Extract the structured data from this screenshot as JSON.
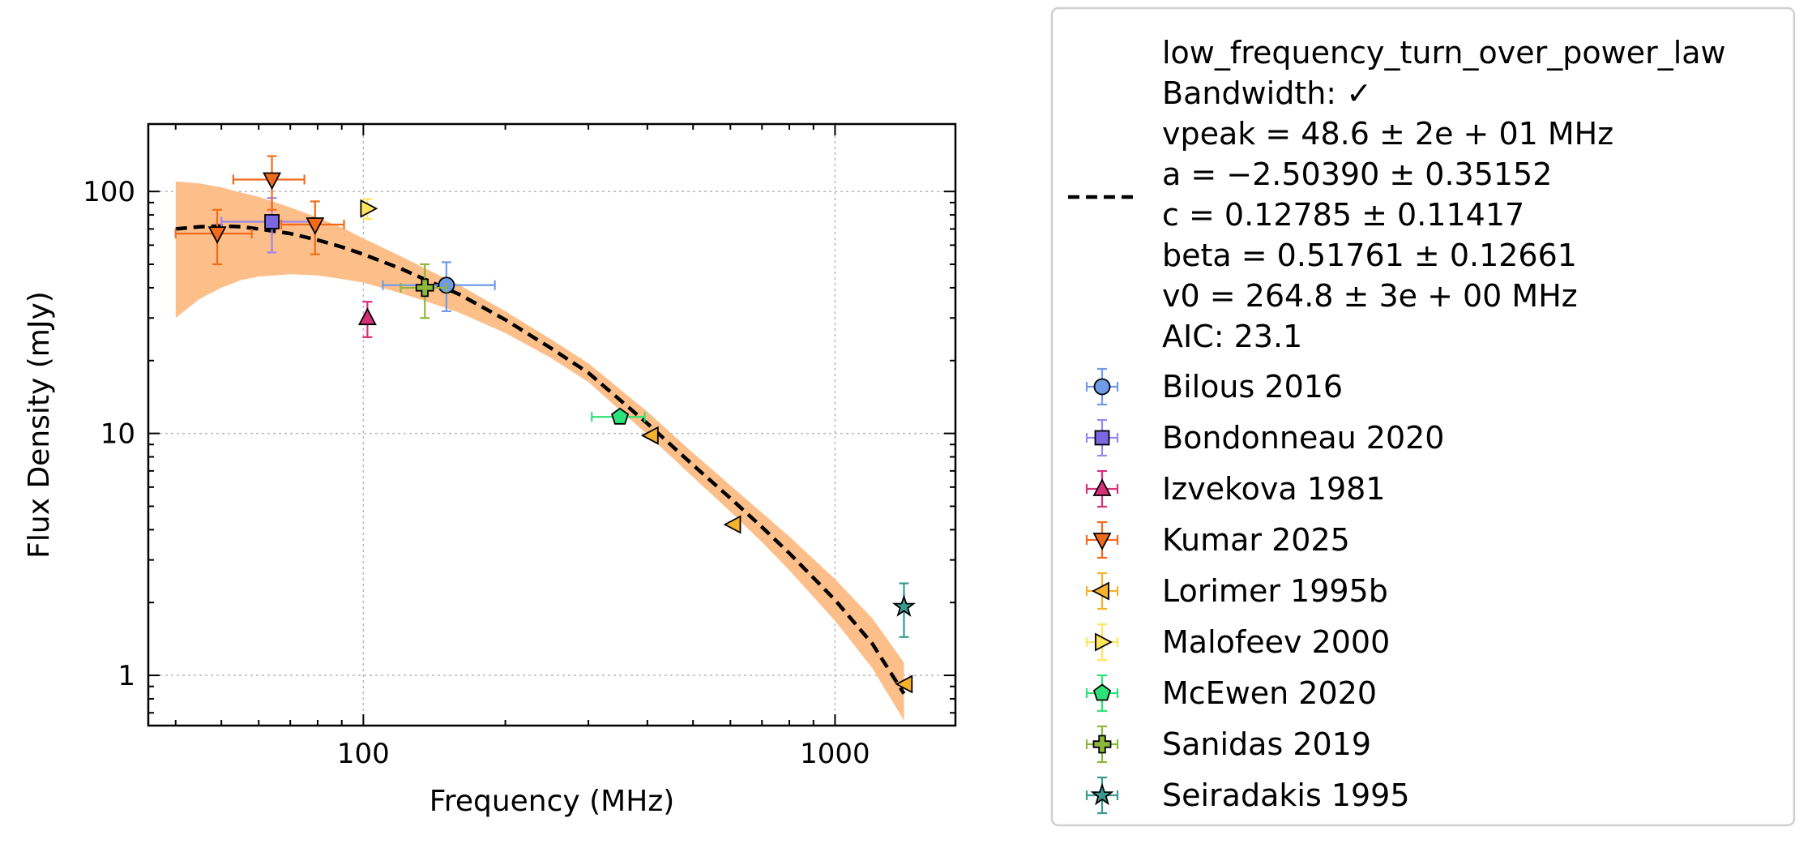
{
  "chart_data": {
    "type": "scatter",
    "xlabel": "Frequency (MHz)",
    "ylabel": "Flux Density (mJy)",
    "xscale": "log",
    "yscale": "log",
    "xlim": [
      35,
      1800
    ],
    "ylim": [
      0.62,
      190
    ],
    "xticks": [
      {
        "value": 100,
        "label": "100"
      },
      {
        "value": 1000,
        "label": "1000"
      }
    ],
    "yticks": [
      {
        "value": 1,
        "label": "1"
      },
      {
        "value": 10,
        "label": "10"
      },
      {
        "value": 100,
        "label": "100"
      }
    ],
    "grid": true,
    "legend_position": "outside-right",
    "fit": {
      "legend_lines": [
        "low_frequency_turn_over_power_law",
        "Bandwidth: ✓",
        "vpeak = 48.6 ± 2e + 01 MHz",
        "a = −2.50390 ± 0.35152",
        "c = 0.12785 ± 0.11417",
        "beta = 0.51761 ± 0.12661",
        "v0 = 264.8 ± 3e + 00 MHz",
        "AIC: 23.1"
      ],
      "color": "#000000",
      "band_color": "#fdbf8a",
      "curve": {
        "x": [
          40,
          45,
          50,
          55,
          60,
          70,
          80,
          90,
          100,
          120,
          140,
          160,
          200,
          250,
          300,
          400,
          500,
          600,
          700,
          800,
          1000,
          1200,
          1400
        ],
        "y": [
          70,
          71.5,
          72,
          71.5,
          70,
          67,
          63,
          59,
          55,
          48,
          42,
          37.5,
          29.5,
          22.5,
          17.8,
          11,
          7.4,
          5.4,
          4.1,
          3.2,
          2.05,
          1.35,
          0.84
        ]
      },
      "band_upper": [
        110,
        108,
        104,
        99,
        95,
        86,
        78,
        71,
        64,
        54,
        46.5,
        41,
        32,
        24.5,
        19.5,
        12.3,
        8.3,
        6.1,
        4.7,
        3.75,
        2.5,
        1.72,
        1.13
      ],
      "band_lower": [
        30,
        36,
        40,
        43,
        44.5,
        45.5,
        45,
        43.5,
        42,
        38,
        34.5,
        31.5,
        26,
        20.5,
        16.3,
        9.9,
        6.6,
        4.75,
        3.55,
        2.72,
        1.68,
        1.07,
        0.65
      ]
    },
    "series": [
      {
        "name": "Bilous 2016",
        "marker": "circle",
        "color": "#6f9be8",
        "edge": "#000000",
        "err_color": "#6f9be8",
        "points": [
          {
            "x": 150,
            "y": 41,
            "xerr": [
              40,
              40
            ],
            "yerr": [
              9,
              10
            ]
          }
        ]
      },
      {
        "name": "Bondonneau 2020",
        "marker": "square",
        "color": "#7b68e0",
        "edge": "#000000",
        "err_color": "#9a86ee",
        "points": [
          {
            "x": 64,
            "y": 75,
            "xerr": [
              14,
              14
            ],
            "yerr": [
              19,
              19
            ]
          }
        ]
      },
      {
        "name": "Izvekova 1981",
        "marker": "triangle-up",
        "color": "#d6307a",
        "edge": "#000000",
        "err_color": "#d6307a",
        "points": [
          {
            "x": 102,
            "y": 30,
            "xerr": [
              0,
              0
            ],
            "yerr": [
              5,
              5
            ]
          }
        ]
      },
      {
        "name": "Kumar 2025",
        "marker": "triangle-down",
        "color": "#f26b1d",
        "edge": "#000000",
        "err_color": "#f26b1d",
        "points": [
          {
            "x": 49,
            "y": 67,
            "xerr": [
              9,
              9
            ],
            "yerr": [
              17,
              17
            ]
          },
          {
            "x": 64,
            "y": 112,
            "xerr": [
              11,
              11
            ],
            "yerr": [
              28,
              28
            ]
          },
          {
            "x": 79,
            "y": 73,
            "xerr": [
              12,
              12
            ],
            "yerr": [
              18,
              18
            ]
          }
        ]
      },
      {
        "name": "Lorimer 1995b",
        "marker": "triangle-left",
        "color": "#f5b22c",
        "edge": "#000000",
        "err_color": "#f5b22c",
        "points": [
          {
            "x": 408,
            "y": 9.8,
            "xerr": [
              0,
              0
            ],
            "yerr": [
              0,
              0
            ]
          },
          {
            "x": 610,
            "y": 4.2,
            "xerr": [
              0,
              0
            ],
            "yerr": [
              0,
              0
            ]
          },
          {
            "x": 1410,
            "y": 0.92,
            "xerr": [
              0,
              0
            ],
            "yerr": [
              0,
              0
            ]
          }
        ]
      },
      {
        "name": "Malofeev 2000",
        "marker": "triangle-right",
        "color": "#ffe65c",
        "edge": "#000000",
        "err_color": "#ffe65c",
        "points": [
          {
            "x": 102,
            "y": 85,
            "xerr": [
              0,
              0
            ],
            "yerr": [
              8,
              8
            ]
          }
        ]
      },
      {
        "name": "McEwen 2020",
        "marker": "pentagon",
        "color": "#2ee27a",
        "edge": "#000000",
        "err_color": "#2ee27a",
        "points": [
          {
            "x": 350,
            "y": 11.7,
            "xerr": [
              45,
              45
            ],
            "yerr": [
              0.6,
              0.6
            ]
          }
        ]
      },
      {
        "name": "Sanidas 2019",
        "marker": "plus",
        "color": "#8db63c",
        "edge": "#000000",
        "err_color": "#8db63c",
        "points": [
          {
            "x": 135,
            "y": 40,
            "xerr": [
              15,
              15
            ],
            "yerr": [
              10,
              10
            ]
          }
        ]
      },
      {
        "name": "Seiradakis 1995",
        "marker": "star",
        "color": "#3a9a8e",
        "edge": "#000000",
        "err_color": "#3a9a8e",
        "points": [
          {
            "x": 1400,
            "y": 1.92,
            "xerr": [
              0,
              0
            ],
            "yerr": [
              0.48,
              0.48
            ]
          }
        ]
      }
    ]
  }
}
